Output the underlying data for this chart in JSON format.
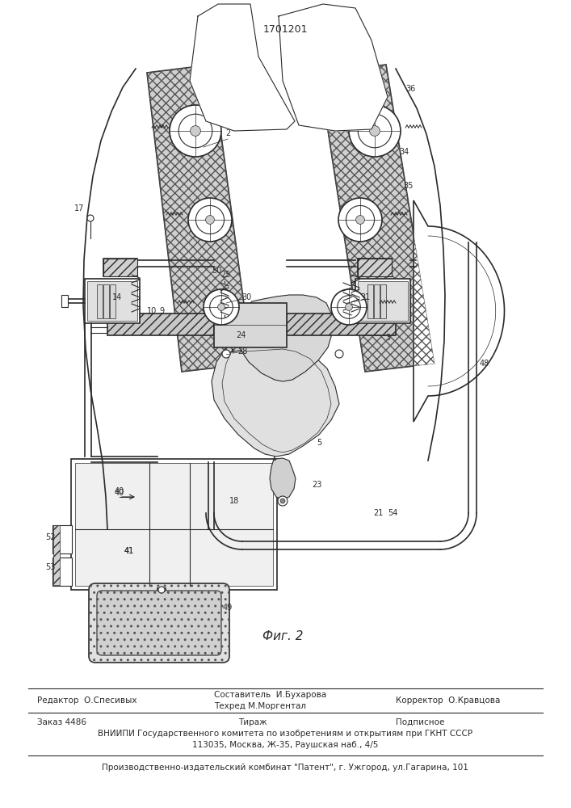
{
  "patent_number": "1701201",
  "fig_caption": "Фиг. 2",
  "editor_line": "Редактор  О.Спесивых",
  "composer_line": "Составитель  И.Бухарова",
  "techred_line": "Техред М.Моргентал",
  "corrector_line": "Корректор  О.Кравцова",
  "order_line": "Заказ 4486",
  "tirazh_line": "Тираж",
  "podpisnoe_line": "Подписное",
  "vniiipi_line": "ВНИИПИ Государственного комитета по изобретениям и открытиям при ГКНТ СССР",
  "address_line": "113035, Москва, Ж-35, Раушская наб., 4/5",
  "production_line": "Производственно-издательский комбинат \"Патент\", г. Ужгород, ул.Гагарина, 101",
  "bg_color": "#ffffff",
  "line_color": "#2a2a2a",
  "hatch_color": "#555555",
  "fig_width": 7.07,
  "fig_height": 10.0
}
